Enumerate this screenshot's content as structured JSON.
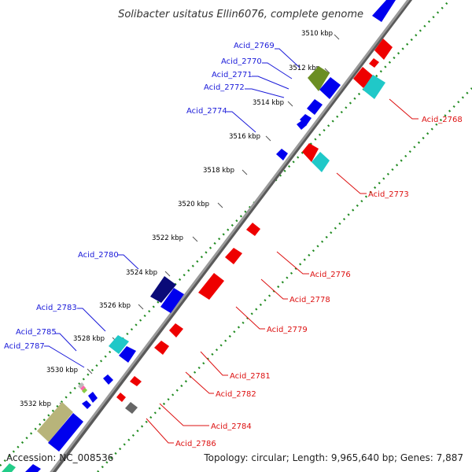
{
  "title": "Solibacter usitatus Ellin6076, complete genome",
  "footer": {
    "accession": "Accession: NC_008536",
    "summary": "Topology: circular; Length: 9,965,640 bp; Genes: 7,887"
  },
  "colors": {
    "backbone": "#8a8a8a",
    "track_dots": "#228b22",
    "label_forward": "#1a1ad9",
    "label_reverse": "#dd1111"
  },
  "ticks": [
    {
      "kbp": 3510,
      "label": "3510 kbp"
    },
    {
      "kbp": 3512,
      "label": "3512 kbp"
    },
    {
      "kbp": 3514,
      "label": "3514 kbp"
    },
    {
      "kbp": 3516,
      "label": "3516 kbp"
    },
    {
      "kbp": 3518,
      "label": "3518 kbp"
    },
    {
      "kbp": 3520,
      "label": "3520 kbp"
    },
    {
      "kbp": 3522,
      "label": "3522 kbp"
    },
    {
      "kbp": 3524,
      "label": "3524 kbp"
    },
    {
      "kbp": 3526,
      "label": "3526 kbp"
    },
    {
      "kbp": 3528,
      "label": "3528 kbp"
    },
    {
      "kbp": 3530,
      "label": "3530 kbp"
    },
    {
      "kbp": 3532,
      "label": "3532 kbp"
    }
  ],
  "labels": {
    "forward": [
      "Acid_2769",
      "Acid_2770",
      "Acid_2771",
      "Acid_2772",
      "Acid_2774",
      "Acid_2780",
      "Acid_2783",
      "Acid_2785",
      "Acid_2787"
    ],
    "reverse": [
      "Acid_2768",
      "Acid_2773",
      "Acid_2776",
      "Acid_2778",
      "Acid_2779",
      "Acid_2781",
      "Acid_2782",
      "Acid_2784",
      "Acid_2786"
    ]
  },
  "feature_colors": [
    "#0000ee",
    "#ee0000",
    "#20c8c8",
    "#6b8e23",
    "#0a0a78",
    "#b8b47a",
    "#666666",
    "#22cc88"
  ]
}
